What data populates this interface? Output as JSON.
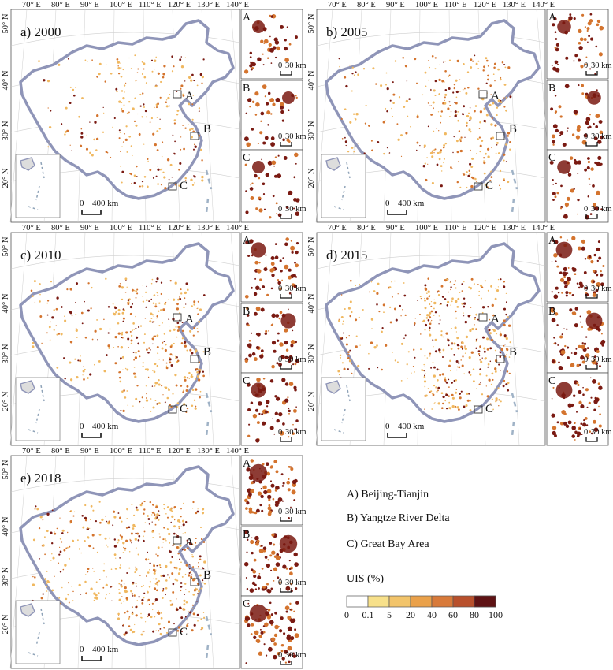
{
  "panels": [
    {
      "label": "a) 2000"
    },
    {
      "label": "b) 2005"
    },
    {
      "label": "c) 2010"
    },
    {
      "label": "d) 2015"
    },
    {
      "label": "e) 2018"
    }
  ],
  "lon_ticks": [
    "70° E",
    "80° E",
    "90° E",
    "100° E",
    "110° E",
    "120° E",
    "130° E",
    "140° E"
  ],
  "lat_ticks": [
    "50° N",
    "40° N",
    "30° N",
    "20° N"
  ],
  "inset_letters": [
    "A",
    "B",
    "C"
  ],
  "main_markers": [
    "A",
    "B",
    "C"
  ],
  "main_scalebar": {
    "start": "0",
    "end": "400 km"
  },
  "inset_scalebar": {
    "start": "0",
    "end": "30 km"
  },
  "legend": {
    "regions": [
      "A) Beijing-Tianjin",
      "B) Yangtze River Delta",
      "C) Great Bay Area"
    ],
    "title": "UIS (%)",
    "ticks": [
      "0",
      "0.1",
      "5",
      "20",
      "40",
      "60",
      "80",
      "100"
    ],
    "colors": [
      "#ffffff",
      "#f7e08a",
      "#f2c46a",
      "#eaa14a",
      "#d87a3a",
      "#b8502c",
      "#8e2a1f",
      "#5e1214"
    ]
  },
  "colors": {
    "border": "#8f95b8",
    "uis_low": "#f0b860",
    "uis_mid": "#d4742e",
    "uis_high": "#7a1a12",
    "grid": "#cfcfcf"
  }
}
